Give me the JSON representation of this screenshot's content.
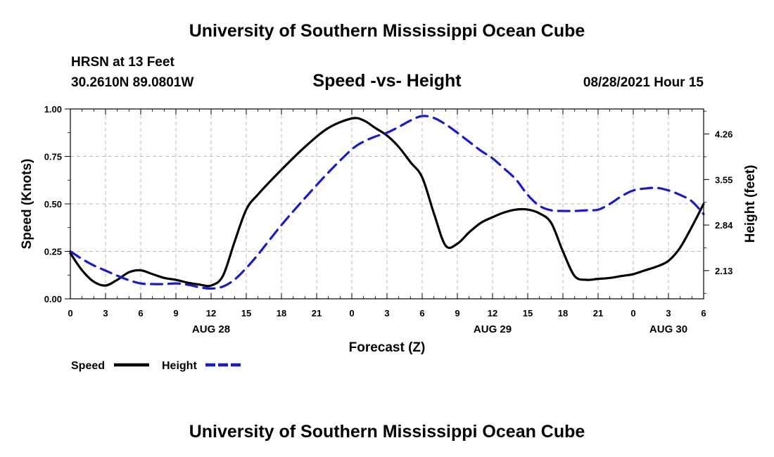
{
  "page": {
    "title_top": "University of Southern Mississippi Ocean Cube",
    "title_bottom": "University of Southern Mississippi Ocean Cube",
    "station": "HRSN at 13 Feet",
    "coords": "30.2610N  89.0801W",
    "chart_title": "Speed -vs- Height",
    "datetime": "08/28/2021 Hour 15"
  },
  "chart_data": {
    "type": "line",
    "title": "Speed -vs- Height",
    "xlabel": "Forecast (Z)",
    "ylabel": "Speed (Knots)",
    "y2label": "Height (feet)",
    "x_range": [
      0,
      54
    ],
    "ylim": [
      0,
      1
    ],
    "y2lim": [
      1.69,
      4.65
    ],
    "grid": true,
    "x_tick_values": [
      0,
      3,
      6,
      9,
      12,
      15,
      18,
      21,
      24,
      27,
      30,
      33,
      36,
      39,
      42,
      45,
      48,
      51,
      54
    ],
    "x_tick_labels": [
      "0",
      "3",
      "6",
      "9",
      "12",
      "15",
      "18",
      "21",
      "0",
      "3",
      "6",
      "9",
      "12",
      "15",
      "18",
      "21",
      "0",
      "3",
      "6"
    ],
    "y_ticks": [
      0,
      0.25,
      0.5,
      0.75,
      1.0
    ],
    "y_tick_labels": [
      "0.00",
      "0.25",
      "0.50",
      "0.75",
      "1.00"
    ],
    "y2_ticks": [
      2.13,
      2.84,
      3.55,
      4.26
    ],
    "y2_tick_labels": [
      "2.13",
      "2.84",
      "3.55",
      "4.26"
    ],
    "date_labels": [
      {
        "x": 12,
        "label": "AUG 28"
      },
      {
        "x": 36,
        "label": "AUG 29"
      },
      {
        "x": 51,
        "label": "AUG 30"
      }
    ],
    "series": [
      {
        "name": "Speed",
        "axis": "left",
        "color": "#000000",
        "style": "solid",
        "x": [
          0,
          1,
          2,
          3,
          4,
          5,
          6,
          7,
          8,
          9,
          10,
          11,
          12,
          13,
          14,
          15,
          16,
          18,
          20,
          22,
          24,
          25,
          26,
          27,
          28,
          29,
          30,
          31,
          32,
          33,
          34,
          35,
          36,
          37,
          38,
          39,
          40,
          41,
          42,
          43,
          44,
          45,
          46,
          47,
          48,
          49,
          50,
          51,
          52,
          53,
          54
        ],
        "values": [
          0.24,
          0.15,
          0.09,
          0.07,
          0.1,
          0.14,
          0.15,
          0.13,
          0.11,
          0.1,
          0.085,
          0.075,
          0.07,
          0.12,
          0.3,
          0.47,
          0.55,
          0.68,
          0.8,
          0.9,
          0.95,
          0.94,
          0.9,
          0.86,
          0.8,
          0.72,
          0.64,
          0.45,
          0.28,
          0.29,
          0.35,
          0.4,
          0.43,
          0.455,
          0.47,
          0.47,
          0.45,
          0.4,
          0.25,
          0.12,
          0.1,
          0.105,
          0.11,
          0.12,
          0.13,
          0.15,
          0.17,
          0.2,
          0.27,
          0.38,
          0.5
        ]
      },
      {
        "name": "Height",
        "axis": "right",
        "color": "#1a1acc",
        "style": "dashed",
        "x": [
          0,
          1,
          2,
          3,
          4,
          5,
          6,
          7,
          8,
          9,
          10,
          11,
          12,
          13,
          14,
          15,
          16,
          18,
          20,
          22,
          24,
          25,
          26,
          27,
          28,
          29,
          30,
          31,
          32,
          33,
          34,
          35,
          36,
          37,
          38,
          39,
          40,
          41,
          42,
          43,
          44,
          45,
          46,
          47,
          48,
          49,
          50,
          51,
          52,
          53,
          54
        ],
        "values": [
          2.43,
          2.31,
          2.21,
          2.13,
          2.05,
          1.98,
          1.93,
          1.92,
          1.92,
          1.93,
          1.91,
          1.87,
          1.85,
          1.88,
          1.99,
          2.17,
          2.38,
          2.84,
          3.26,
          3.66,
          4.02,
          4.14,
          4.22,
          4.28,
          4.37,
          4.47,
          4.54,
          4.51,
          4.41,
          4.28,
          4.14,
          4.0,
          3.88,
          3.72,
          3.55,
          3.31,
          3.14,
          3.07,
          3.06,
          3.06,
          3.07,
          3.08,
          3.17,
          3.29,
          3.38,
          3.41,
          3.42,
          3.38,
          3.31,
          3.21,
          3.01
        ]
      }
    ],
    "legend": [
      {
        "name": "Speed",
        "color": "#000000",
        "style": "solid"
      },
      {
        "name": "Height",
        "color": "#1a1acc",
        "style": "dashed"
      }
    ],
    "legend_position": "bottom-left"
  }
}
